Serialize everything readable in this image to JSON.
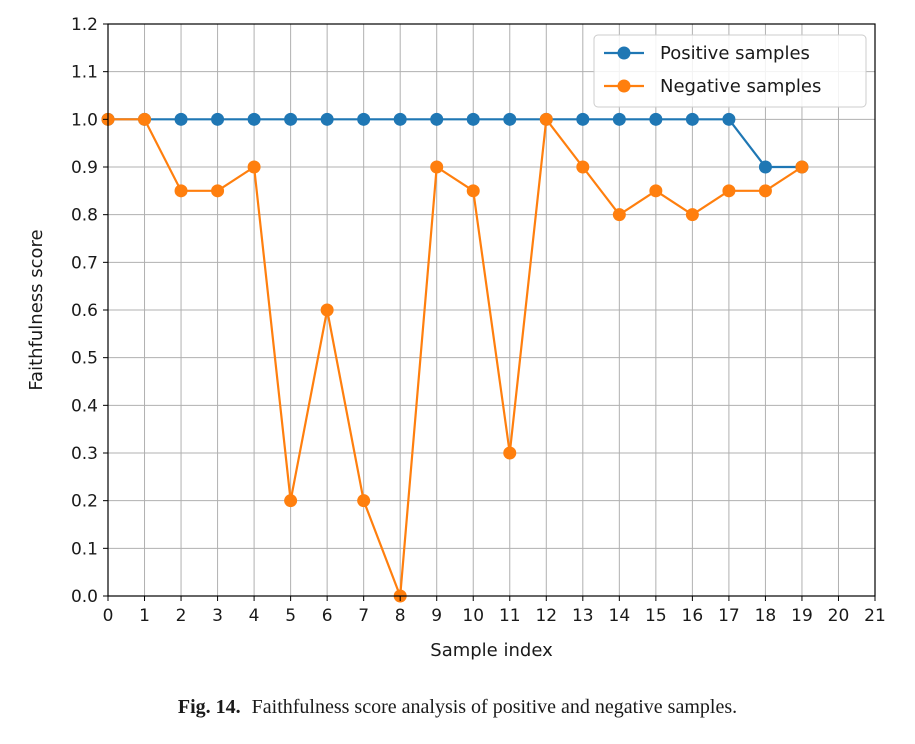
{
  "chart_data": {
    "type": "line",
    "xlabel": "Sample index",
    "ylabel": "Faithfulness score",
    "xlim": [
      0,
      21
    ],
    "ylim": [
      0.0,
      1.2
    ],
    "x_ticks": [
      "0",
      "1",
      "2",
      "3",
      "4",
      "5",
      "6",
      "7",
      "8",
      "9",
      "10",
      "11",
      "12",
      "13",
      "14",
      "15",
      "16",
      "17",
      "18",
      "19",
      "20",
      "21"
    ],
    "y_ticks": [
      "0.0",
      "0.1",
      "0.2",
      "0.3",
      "0.4",
      "0.5",
      "0.6",
      "0.7",
      "0.8",
      "0.9",
      "1.0",
      "1.1",
      "1.2"
    ],
    "grid": true,
    "legend_position": "top-right",
    "x": [
      0,
      1,
      2,
      3,
      4,
      5,
      6,
      7,
      8,
      9,
      10,
      11,
      12,
      13,
      14,
      15,
      16,
      17,
      18,
      19
    ],
    "series": [
      {
        "name": "Positive samples",
        "color": "#1f77b4",
        "values": [
          1.0,
          1.0,
          1.0,
          1.0,
          1.0,
          1.0,
          1.0,
          1.0,
          1.0,
          1.0,
          1.0,
          1.0,
          1.0,
          1.0,
          1.0,
          1.0,
          1.0,
          1.0,
          0.9,
          0.9
        ]
      },
      {
        "name": "Negative samples",
        "color": "#ff7f0e",
        "values": [
          1.0,
          1.0,
          0.85,
          0.85,
          0.9,
          0.2,
          0.6,
          0.2,
          0.0,
          0.9,
          0.85,
          0.3,
          1.0,
          0.9,
          0.8,
          0.85,
          0.8,
          0.85,
          0.85,
          0.9
        ]
      }
    ]
  },
  "caption": {
    "label": "Fig. 14.",
    "text": "Faithfulness score analysis of positive and negative samples."
  }
}
